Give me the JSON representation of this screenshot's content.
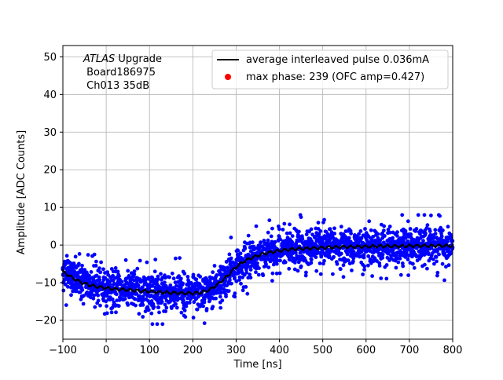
{
  "chart_data": {
    "type": "scatter",
    "title": "",
    "xlabel": "Time [ns]",
    "ylabel": "Amplitude [ADC Counts]",
    "xlim": [
      -100,
      800
    ],
    "ylim": [
      -25,
      53
    ],
    "xticks": [
      -100,
      0,
      100,
      200,
      300,
      400,
      500,
      600,
      700,
      800
    ],
    "yticks": [
      -20,
      -10,
      0,
      10,
      20,
      30,
      40,
      50
    ],
    "grid": true,
    "annotation": {
      "italic": "ATLAS",
      "rest": " Upgrade",
      "line2": " Board186975",
      "line3": " Ch013 35dB"
    },
    "legend": {
      "placement": "top-right",
      "entries": [
        {
          "label": "average interleaved pulse 0.036mA",
          "marker": "line",
          "color": "#000000"
        },
        {
          "label": "max phase: 239 (OFC amp=0.427)",
          "marker": "dot",
          "color": "#ff0000"
        }
      ]
    },
    "series": [
      {
        "name": "average interleaved pulse 0.036mA",
        "kind": "line",
        "color": "#000000",
        "x": [
          -100,
          -80,
          -60,
          -40,
          -20,
          0,
          20,
          40,
          60,
          80,
          100,
          120,
          140,
          160,
          180,
          200,
          220,
          240,
          260,
          280,
          300,
          320,
          340,
          360,
          380,
          400,
          420,
          440,
          460,
          480,
          500,
          520,
          540,
          560,
          580,
          600,
          620,
          640,
          660,
          680,
          700,
          720,
          740,
          760,
          780,
          800
        ],
        "y": [
          -7,
          -8.5,
          -9.8,
          -10.6,
          -11.1,
          -11.4,
          -11.7,
          -11.8,
          -12.0,
          -12.2,
          -12.3,
          -12.5,
          -12.6,
          -12.7,
          -12.8,
          -12.8,
          -12.6,
          -11.8,
          -10.2,
          -8.2,
          -5.8,
          -4.2,
          -3.2,
          -2.4,
          -1.9,
          -1.5,
          -1.2,
          -1.0,
          -0.9,
          -0.8,
          -0.7,
          -0.6,
          -0.5,
          -0.5,
          -0.4,
          -0.4,
          -0.3,
          -0.3,
          -0.3,
          -0.3,
          -0.2,
          -0.2,
          -0.2,
          -0.2,
          -0.2,
          -0.2
        ]
      },
      {
        "name": "samples",
        "kind": "scatter",
        "color": "#0000ff",
        "spread": 3.2,
        "outlier_max": 8,
        "outlier_min": -21
      },
      {
        "name": "max phase: 239 (OFC amp=0.427)",
        "kind": "scatter",
        "color": "#ff0000",
        "x": [],
        "y": []
      }
    ]
  }
}
